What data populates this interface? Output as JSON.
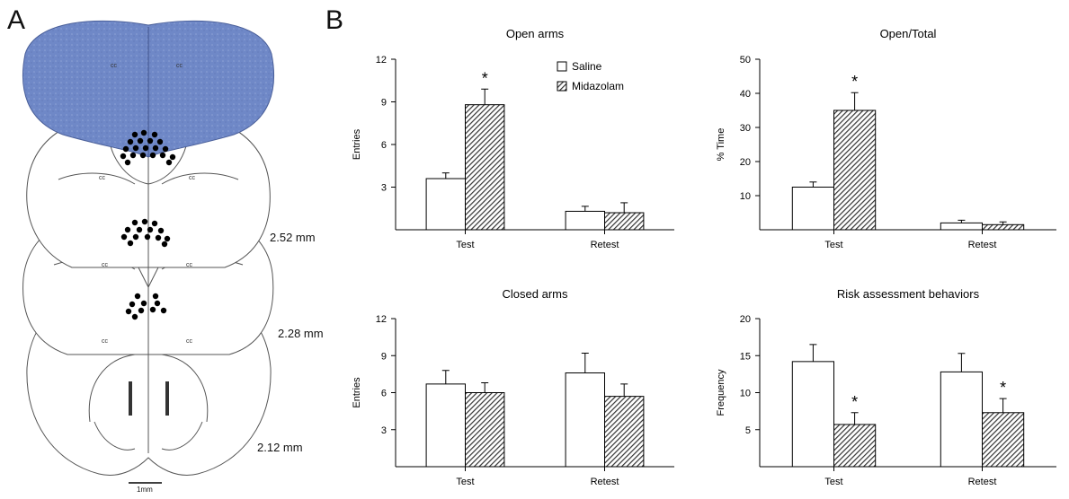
{
  "panel_labels": {
    "a": "A",
    "b": "B"
  },
  "brain": {
    "depths": [
      "2.52 mm",
      "2.28 mm",
      "2.12 mm"
    ],
    "scale_bar": "1mm",
    "region_label": "cc",
    "colors": {
      "stain": "#6f88c7",
      "dot": "#000000",
      "outline": "#555555"
    }
  },
  "legend": {
    "items": [
      "Saline",
      "Midazolam"
    ]
  },
  "chart_data": [
    {
      "type": "bar",
      "title": "Open arms",
      "ylabel": "Entries",
      "xlabel": "",
      "categories": [
        "Test",
        "Retest"
      ],
      "ylim": [
        0,
        12
      ],
      "yticks": [
        "3",
        "6",
        "9",
        "12"
      ],
      "series": [
        {
          "name": "Saline",
          "values": [
            3.6,
            1.3
          ],
          "errors": [
            0.4,
            0.35
          ]
        },
        {
          "name": "Midazolam",
          "values": [
            8.8,
            1.2
          ],
          "errors": [
            1.1,
            0.7
          ]
        }
      ],
      "significance": [
        {
          "category": "Test",
          "series": "Midazolam",
          "label": "*"
        }
      ],
      "legend": "top-right"
    },
    {
      "type": "bar",
      "title": "Open/Total",
      "ylabel": "% Time",
      "xlabel": "",
      "categories": [
        "Test",
        "Retest"
      ],
      "ylim": [
        0,
        50
      ],
      "yticks": [
        "10",
        "20",
        "30",
        "40",
        "50"
      ],
      "series": [
        {
          "name": "Saline",
          "values": [
            12.5,
            2.0
          ],
          "errors": [
            1.5,
            0.8
          ]
        },
        {
          "name": "Midazolam",
          "values": [
            35.0,
            1.5
          ],
          "errors": [
            5.2,
            0.8
          ]
        }
      ],
      "significance": [
        {
          "category": "Test",
          "series": "Midazolam",
          "label": "*"
        }
      ]
    },
    {
      "type": "bar",
      "title": "Closed arms",
      "ylabel": "Entries",
      "xlabel": "",
      "categories": [
        "Test",
        "Retest"
      ],
      "ylim": [
        0,
        12
      ],
      "yticks": [
        "3",
        "6",
        "9",
        "12"
      ],
      "series": [
        {
          "name": "Saline",
          "values": [
            6.7,
            7.6
          ],
          "errors": [
            1.1,
            1.6
          ]
        },
        {
          "name": "Midazolam",
          "values": [
            6.0,
            5.7
          ],
          "errors": [
            0.8,
            1.0
          ]
        }
      ],
      "significance": []
    },
    {
      "type": "bar",
      "title": "Risk assessment behaviors",
      "ylabel": "Frequency",
      "xlabel": "",
      "categories": [
        "Test",
        "Retest"
      ],
      "ylim": [
        0,
        20
      ],
      "yticks": [
        "5",
        "10",
        "15",
        "20"
      ],
      "series": [
        {
          "name": "Saline",
          "values": [
            14.2,
            12.8
          ],
          "errors": [
            2.3,
            2.5
          ]
        },
        {
          "name": "Midazolam",
          "values": [
            5.7,
            7.3
          ],
          "errors": [
            1.6,
            1.9
          ]
        }
      ],
      "significance": [
        {
          "category": "Test",
          "series": "Midazolam",
          "label": "*"
        },
        {
          "category": "Retest",
          "series": "Midazolam",
          "label": "*"
        }
      ]
    }
  ]
}
